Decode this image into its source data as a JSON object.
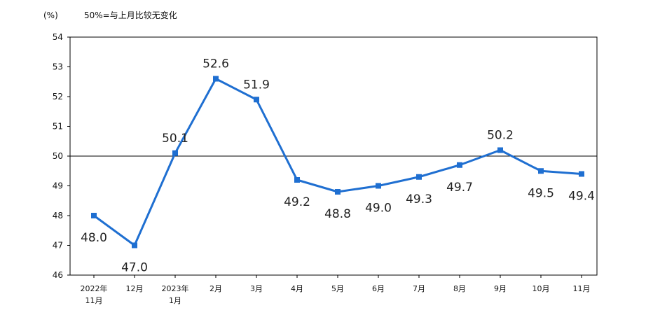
{
  "chart_data": {
    "type": "line",
    "unit_label": "(%)",
    "note": "50%=与上月比较无变化",
    "categories": [
      [
        "2022年",
        "11月"
      ],
      [
        "12月"
      ],
      [
        "2023年",
        "1月"
      ],
      [
        "2月"
      ],
      [
        "3月"
      ],
      [
        "4月"
      ],
      [
        "5月"
      ],
      [
        "6月"
      ],
      [
        "7月"
      ],
      [
        "8月"
      ],
      [
        "9月"
      ],
      [
        "10月"
      ],
      [
        "11月"
      ]
    ],
    "values": [
      48.0,
      47.0,
      50.1,
      52.6,
      51.9,
      49.2,
      48.8,
      49.0,
      49.3,
      49.7,
      50.2,
      49.5,
      49.4
    ],
    "value_labels": [
      "48.0",
      "47.0",
      "50.1",
      "52.6",
      "51.9",
      "49.2",
      "48.8",
      "49.0",
      "49.3",
      "49.7",
      "50.2",
      "49.5",
      "49.4"
    ],
    "label_position": [
      "below",
      "below",
      "above",
      "above",
      "above",
      "below",
      "below",
      "below",
      "below",
      "below",
      "above",
      "below",
      "below"
    ],
    "ylim": [
      46,
      54
    ],
    "yticks": [
      46,
      47,
      48,
      49,
      50,
      51,
      52,
      53,
      54
    ],
    "reference_line": 50,
    "grid": false,
    "series_color": "#1f6fd1",
    "reference_color": "#000000"
  }
}
